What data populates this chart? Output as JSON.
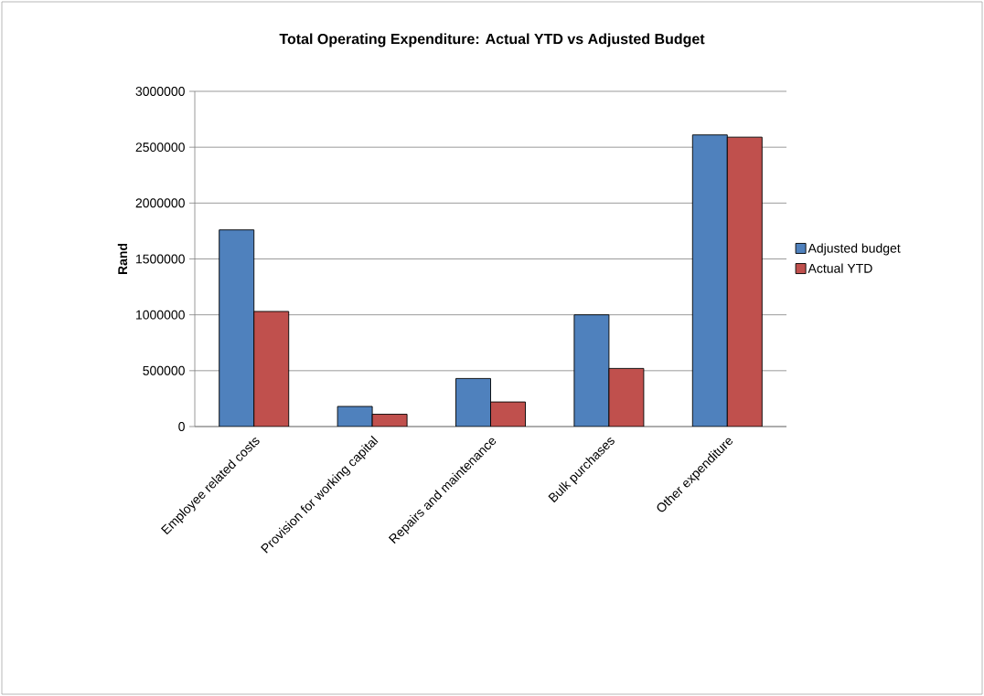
{
  "chart_data": {
    "type": "bar",
    "title": "Total Operating Expenditure: Actual YTD vs Adjusted Budget",
    "ylabel": "Rand",
    "categories": [
      "Employee related costs",
      "Provision for working capital",
      "Repairs and maintenance",
      "Bulk purchases",
      "Other expenditure"
    ],
    "series": [
      {
        "name": "Adjusted budget",
        "color": "#4f81bd",
        "values": [
          1760000,
          180000,
          430000,
          1000000,
          2610000
        ]
      },
      {
        "name": "Actual YTD",
        "color": "#c0504d",
        "values": [
          1030000,
          110000,
          220000,
          520000,
          2590000
        ]
      }
    ],
    "ylim": [
      0,
      3000000
    ],
    "yticks": [
      0,
      500000,
      1000000,
      1500000,
      2000000,
      2500000,
      3000000
    ],
    "grid": "y",
    "legend": "right"
  }
}
